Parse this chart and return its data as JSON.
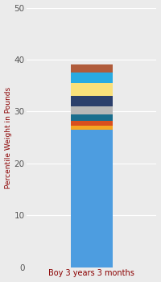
{
  "category": "Boy 3 years 3 months",
  "ylabel": "Percentile Weight in Pounds",
  "ylim": [
    0,
    50
  ],
  "yticks": [
    0,
    10,
    20,
    30,
    40,
    50
  ],
  "background_color": "#ebebeb",
  "segments": [
    {
      "value": 26.5,
      "color": "#4d9de0"
    },
    {
      "value": 0.7,
      "color": "#f5a623"
    },
    {
      "value": 1.0,
      "color": "#d94f1e"
    },
    {
      "value": 1.3,
      "color": "#1a6e8e"
    },
    {
      "value": 1.5,
      "color": "#b8b8b8"
    },
    {
      "value": 2.0,
      "color": "#2b3f6b"
    },
    {
      "value": 2.5,
      "color": "#f9e07a"
    },
    {
      "value": 2.0,
      "color": "#29abe2"
    },
    {
      "value": 1.5,
      "color": "#b05c3b"
    }
  ]
}
